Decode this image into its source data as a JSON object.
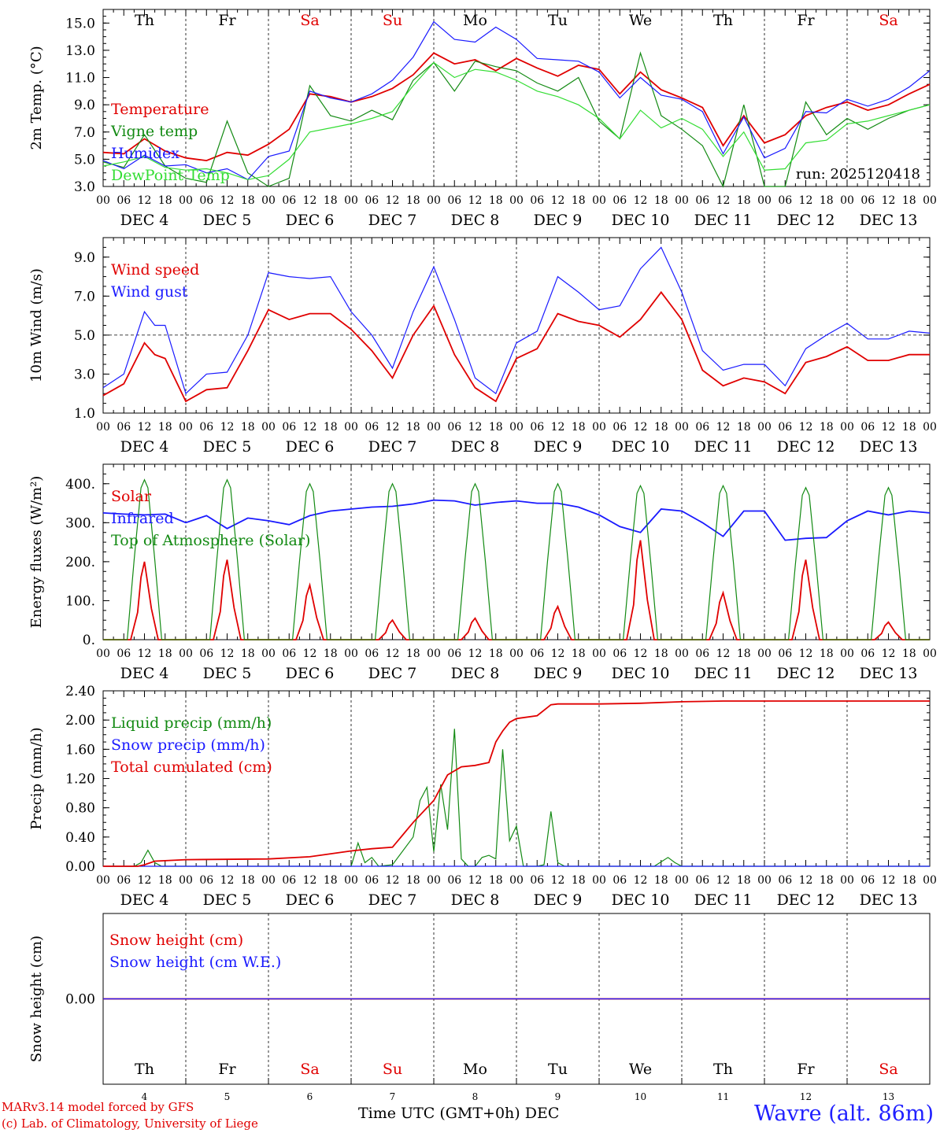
{
  "days": [
    {
      "short": "Th",
      "date": "DEC  4",
      "num": "4",
      "weekend": false
    },
    {
      "short": "Fr",
      "date": "DEC  5",
      "num": "5",
      "weekend": false
    },
    {
      "short": "Sa",
      "date": "DEC  6",
      "num": "6",
      "weekend": true
    },
    {
      "short": "Su",
      "date": "DEC  7",
      "num": "7",
      "weekend": true
    },
    {
      "short": "Mo",
      "date": "DEC  8",
      "num": "8",
      "weekend": false
    },
    {
      "short": "Tu",
      "date": "DEC  9",
      "num": "9",
      "weekend": false
    },
    {
      "short": "We",
      "date": "DEC 10",
      "num": "10",
      "weekend": false
    },
    {
      "short": "Th",
      "date": "DEC 11",
      "num": "11",
      "weekend": false
    },
    {
      "short": "Fr",
      "date": "DEC 12",
      "num": "12",
      "weekend": false
    },
    {
      "short": "Sa",
      "date": "DEC 13",
      "num": "13",
      "weekend": true
    }
  ],
  "hour_ticks": [
    "00",
    "06",
    "12",
    "18"
  ],
  "end_tick": "00",
  "colors": {
    "red": "#e00000",
    "green": "#138a13",
    "blue": "#1a1aff",
    "lightgreen": "#33dd33",
    "weekend": "#e00000",
    "axis": "#000000"
  },
  "footer": {
    "model": "MARv3.14 model forced by GFS",
    "credit": "(c) Lab. of Climatology, University of Liege",
    "station": "Wavre (alt. 86m)",
    "xaxis": "Time UTC (GMT+0h) DEC"
  },
  "chart_data": [
    {
      "type": "line",
      "id": "temp",
      "ylabel": "2m Temp. (°C)",
      "ylim": [
        3.0,
        16.0
      ],
      "yticks": [
        "3.0",
        "5.0",
        "7.0",
        "9.0",
        "11.0",
        "13.0",
        "15.0"
      ],
      "ytick_values": [
        3,
        5,
        7,
        9,
        11,
        13,
        15
      ],
      "annotation": "run: 2025120418",
      "x_range_hours": [
        0,
        240
      ],
      "series": [
        {
          "name": "Temperature",
          "color": "red",
          "x": [
            0,
            6,
            12,
            18,
            24,
            30,
            36,
            42,
            48,
            54,
            60,
            66,
            72,
            78,
            84,
            90,
            96,
            102,
            108,
            114,
            120,
            126,
            132,
            138,
            144,
            150,
            156,
            162,
            168,
            174,
            180,
            186,
            192,
            198,
            204,
            210,
            216,
            222,
            228,
            234,
            240
          ],
          "values": [
            5.5,
            5.4,
            6.5,
            5.6,
            5.1,
            4.9,
            5.5,
            5.3,
            6.1,
            7.2,
            9.8,
            9.6,
            9.2,
            9.6,
            10.2,
            11.2,
            12.8,
            12.0,
            12.3,
            11.5,
            12.4,
            11.7,
            11.1,
            11.9,
            11.6,
            9.8,
            11.4,
            10.1,
            9.5,
            8.8,
            6.0,
            8.2,
            6.2,
            6.8,
            8.2,
            8.8,
            9.2,
            8.6,
            9.0,
            9.8,
            10.5
          ]
        },
        {
          "name": "Vigne temp",
          "color": "green",
          "x": [
            0,
            6,
            12,
            18,
            24,
            30,
            36,
            42,
            48,
            54,
            60,
            66,
            72,
            78,
            84,
            90,
            96,
            102,
            108,
            114,
            120,
            126,
            132,
            138,
            144,
            150,
            156,
            162,
            168,
            174,
            180,
            186,
            192,
            198,
            204,
            210,
            216,
            222,
            228,
            234,
            240
          ],
          "values": [
            4.8,
            4.4,
            6.8,
            4.5,
            3.6,
            3.3,
            7.8,
            4.0,
            3.0,
            3.6,
            10.4,
            8.2,
            7.8,
            8.6,
            7.9,
            10.8,
            12.1,
            10.0,
            12.2,
            11.8,
            11.5,
            10.6,
            10.0,
            11.0,
            7.8,
            6.5,
            12.8,
            8.2,
            7.2,
            6.0,
            2.5,
            9.0,
            3.0,
            2.8,
            9.2,
            6.8,
            8.0,
            7.2,
            8.0,
            8.6,
            9.0
          ]
        },
        {
          "name": "Humidex",
          "color": "blue",
          "x": [
            0,
            6,
            12,
            18,
            24,
            30,
            36,
            42,
            48,
            54,
            60,
            66,
            72,
            78,
            84,
            90,
            96,
            102,
            108,
            114,
            120,
            126,
            132,
            138,
            144,
            150,
            156,
            162,
            168,
            174,
            180,
            186,
            192,
            198,
            204,
            210,
            216,
            222,
            228,
            234,
            240
          ],
          "values": [
            4.9,
            4.3,
            5.3,
            4.5,
            4.6,
            4.0,
            4.3,
            3.5,
            5.2,
            5.6,
            10.0,
            9.5,
            9.2,
            9.8,
            10.8,
            12.5,
            15.1,
            13.8,
            13.6,
            14.7,
            13.8,
            12.4,
            12.3,
            12.2,
            11.4,
            9.5,
            11.0,
            9.7,
            9.4,
            8.5,
            5.4,
            8.1,
            5.1,
            5.8,
            8.5,
            8.4,
            9.4,
            8.9,
            9.4,
            10.3,
            11.5
          ]
        },
        {
          "name": "DewPoint Temp",
          "color": "lightgreen",
          "x": [
            0,
            6,
            12,
            18,
            24,
            30,
            36,
            42,
            48,
            54,
            60,
            66,
            72,
            78,
            84,
            90,
            96,
            102,
            108,
            114,
            120,
            126,
            132,
            138,
            144,
            150,
            156,
            162,
            168,
            174,
            180,
            186,
            192,
            198,
            204,
            210,
            216,
            222,
            228,
            234,
            240
          ],
          "values": [
            4.5,
            4.8,
            5.2,
            4.4,
            4.2,
            4.3,
            4.0,
            3.5,
            3.8,
            5.0,
            7.0,
            7.3,
            7.6,
            8.0,
            8.5,
            10.4,
            12.1,
            11.0,
            11.6,
            11.4,
            10.8,
            10.0,
            9.6,
            9.0,
            8.0,
            6.5,
            8.6,
            7.3,
            8.0,
            7.2,
            5.2,
            7.0,
            4.2,
            4.3,
            6.2,
            6.4,
            7.6,
            7.8,
            8.2,
            8.6,
            9.0
          ]
        }
      ]
    },
    {
      "type": "line",
      "id": "wind",
      "ylabel": "10m Wind (m/s)",
      "ylim": [
        1.0,
        10.0
      ],
      "yticks": [
        "1.0",
        "3.0",
        "5.0",
        "7.0",
        "9.0"
      ],
      "ytick_values": [
        1,
        3,
        5,
        7,
        9
      ],
      "reference_line": 5.0,
      "x_range_hours": [
        0,
        240
      ],
      "series": [
        {
          "name": "Wind speed",
          "color": "red",
          "x": [
            0,
            6,
            12,
            15,
            18,
            24,
            30,
            36,
            42,
            48,
            54,
            60,
            66,
            72,
            78,
            84,
            90,
            96,
            102,
            108,
            114,
            120,
            126,
            132,
            138,
            144,
            150,
            156,
            162,
            168,
            174,
            180,
            186,
            192,
            198,
            204,
            210,
            216,
            222,
            228,
            234,
            240
          ],
          "values": [
            1.9,
            2.5,
            4.6,
            4.0,
            3.8,
            1.6,
            2.2,
            2.3,
            4.2,
            6.3,
            5.8,
            6.1,
            6.1,
            5.3,
            4.2,
            2.8,
            5.0,
            6.5,
            4.0,
            2.3,
            1.6,
            3.8,
            4.3,
            6.1,
            5.7,
            5.5,
            4.9,
            5.8,
            7.2,
            5.8,
            3.2,
            2.4,
            2.8,
            2.6,
            2.0,
            3.6,
            3.9,
            4.4,
            3.7,
            3.7,
            4.0,
            4.0
          ]
        },
        {
          "name": "Wind gust",
          "color": "blue",
          "x": [
            0,
            6,
            12,
            15,
            18,
            24,
            30,
            36,
            42,
            48,
            54,
            60,
            66,
            72,
            78,
            84,
            90,
            96,
            102,
            108,
            114,
            120,
            126,
            132,
            138,
            144,
            150,
            156,
            162,
            168,
            174,
            180,
            186,
            192,
            198,
            204,
            210,
            216,
            222,
            228,
            234,
            240
          ],
          "values": [
            2.3,
            3.0,
            6.2,
            5.5,
            5.5,
            2.0,
            3.0,
            3.1,
            5.0,
            8.2,
            8.0,
            7.9,
            8.0,
            6.2,
            5.0,
            3.3,
            6.2,
            8.5,
            5.8,
            2.8,
            2.0,
            4.6,
            5.2,
            8.0,
            7.2,
            6.3,
            6.5,
            8.4,
            9.5,
            7.2,
            4.2,
            3.2,
            3.5,
            3.5,
            2.4,
            4.3,
            5.0,
            5.6,
            4.8,
            4.8,
            5.2,
            5.1
          ]
        }
      ]
    },
    {
      "type": "line",
      "id": "energy",
      "ylabel": "Energy fluxes (W/m²)",
      "ylim": [
        0,
        450
      ],
      "yticks": [
        "0.",
        "100.",
        "200.",
        "300.",
        "400."
      ],
      "ytick_values": [
        0,
        100,
        200,
        300,
        400
      ],
      "x_range_hours": [
        0,
        240
      ],
      "daily_peaks": {
        "toa": [
          410,
          410,
          400,
          400,
          400,
          400,
          395,
          395,
          390,
          390
        ],
        "solar": [
          200,
          205,
          140,
          50,
          55,
          85,
          255,
          120,
          205,
          45
        ]
      },
      "series": [
        {
          "name": "Solar",
          "color": "red"
        },
        {
          "name": "Infrared",
          "color": "blue",
          "x": [
            0,
            6,
            12,
            18,
            24,
            30,
            36,
            42,
            48,
            54,
            60,
            66,
            72,
            78,
            84,
            90,
            96,
            102,
            108,
            114,
            120,
            126,
            132,
            138,
            144,
            150,
            156,
            162,
            168,
            174,
            180,
            186,
            192,
            198,
            204,
            210,
            216,
            222,
            228,
            234,
            240
          ],
          "values": [
            325,
            322,
            320,
            322,
            300,
            318,
            285,
            312,
            305,
            295,
            318,
            330,
            335,
            340,
            342,
            348,
            358,
            356,
            345,
            352,
            356,
            350,
            350,
            340,
            320,
            290,
            275,
            335,
            330,
            300,
            265,
            330,
            330,
            255,
            260,
            262,
            305,
            330,
            320,
            330,
            325
          ]
        },
        {
          "name": "Top of Atmosphere (Solar)",
          "color": "green"
        }
      ]
    },
    {
      "type": "line",
      "id": "precip",
      "ylabel": "Precip (mm/h)",
      "ylim": [
        0.0,
        2.4
      ],
      "yticks": [
        "0.00",
        "0.40",
        "0.80",
        "1.20",
        "1.60",
        "2.00",
        "2.40"
      ],
      "ytick_values": [
        0,
        0.4,
        0.8,
        1.2,
        1.6,
        2.0,
        2.4
      ],
      "x_range_hours": [
        0,
        240
      ],
      "series": [
        {
          "name": "Liquid precip (mm/h)",
          "color": "green",
          "x": [
            0,
            9,
            11,
            13,
            15,
            17,
            24,
            40,
            48,
            54,
            60,
            66,
            72,
            74,
            76,
            78,
            80,
            84,
            90,
            92,
            94,
            96,
            98,
            100,
            102,
            104,
            106,
            108,
            110,
            112,
            114,
            116,
            118,
            120,
            122,
            124,
            126,
            128,
            130,
            132,
            134,
            140,
            150,
            160,
            164,
            166,
            168,
            180,
            240
          ],
          "values": [
            0,
            0,
            0.05,
            0.22,
            0.05,
            0,
            0,
            0,
            0,
            0,
            0,
            0,
            0,
            0.32,
            0.05,
            0.12,
            0,
            0.02,
            0.4,
            0.9,
            1.08,
            0.2,
            1.12,
            0.5,
            1.88,
            0.1,
            0,
            0,
            0.12,
            0.15,
            0.1,
            1.6,
            0.35,
            0.55,
            0,
            0,
            0,
            0.02,
            0.75,
            0.05,
            0,
            0,
            0,
            0,
            0.12,
            0.05,
            0,
            0,
            0
          ]
        },
        {
          "name": "Snow precip (mm/h)",
          "color": "blue",
          "x": [
            0,
            240
          ],
          "values": [
            0,
            0
          ]
        },
        {
          "name": "Total cumulated (cm)",
          "color": "red",
          "x": [
            0,
            10,
            12,
            15,
            24,
            48,
            60,
            72,
            78,
            84,
            90,
            96,
            100,
            104,
            108,
            112,
            114,
            116,
            118,
            120,
            126,
            130,
            132,
            144,
            156,
            168,
            180,
            192,
            240
          ],
          "values": [
            0,
            0,
            0.02,
            0.07,
            0.09,
            0.1,
            0.13,
            0.21,
            0.24,
            0.26,
            0.6,
            0.9,
            1.25,
            1.36,
            1.38,
            1.42,
            1.7,
            1.85,
            1.97,
            2.02,
            2.06,
            2.21,
            2.22,
            2.22,
            2.23,
            2.25,
            2.26,
            2.26,
            2.26
          ]
        }
      ]
    },
    {
      "type": "line",
      "id": "snow",
      "ylabel": "Snow height (cm)",
      "ylim": [
        -1,
        1
      ],
      "yticks": [
        "0.00"
      ],
      "ytick_values": [
        0
      ],
      "x_range_hours": [
        0,
        240
      ],
      "series": [
        {
          "name": "Snow height (cm)",
          "color": "red",
          "x": [
            0,
            240
          ],
          "values": [
            0,
            0
          ]
        },
        {
          "name": "Snow height (cm W.E.)",
          "color": "blue",
          "x": [
            0,
            240
          ],
          "values": [
            0,
            0
          ]
        }
      ]
    }
  ]
}
